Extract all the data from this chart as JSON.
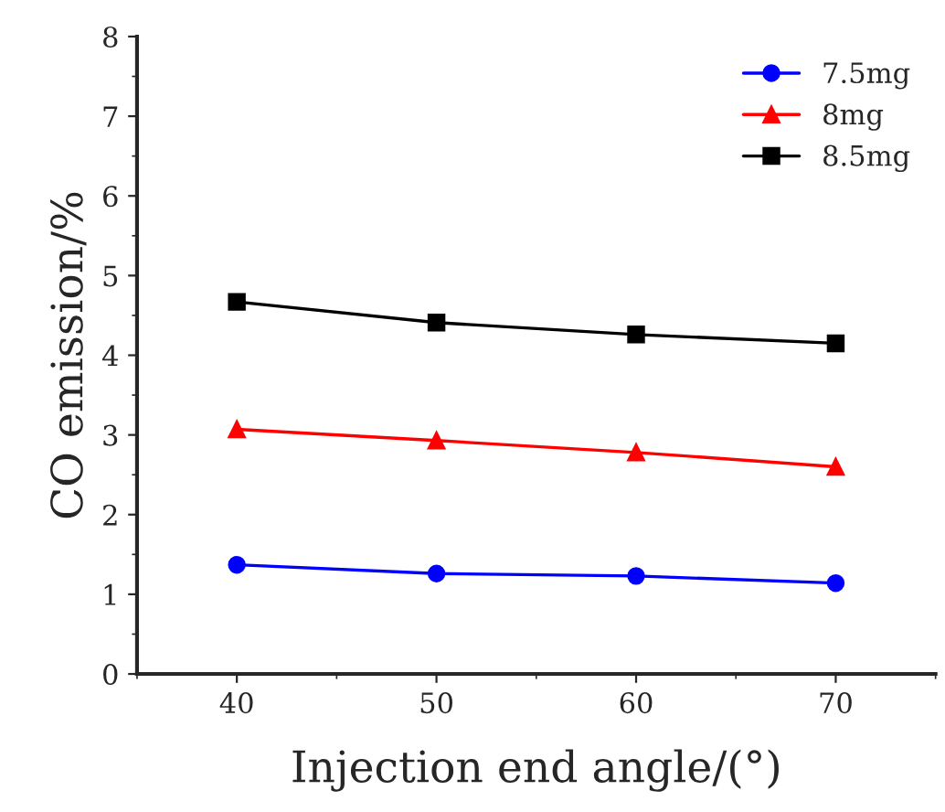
{
  "chart_data": {
    "type": "line",
    "xlabel": "Injection end angle/(°)",
    "ylabel": "CO emission/%",
    "x": [
      40,
      50,
      60,
      70
    ],
    "series": [
      {
        "name": "7.5mg",
        "color": "#0000ff",
        "marker": "circle",
        "values": [
          1.37,
          1.26,
          1.23,
          1.14
        ]
      },
      {
        "name": "8mg",
        "color": "#ff0000",
        "marker": "triangle",
        "values": [
          3.07,
          2.93,
          2.78,
          2.6
        ]
      },
      {
        "name": "8.5mg",
        "color": "#000000",
        "marker": "square",
        "values": [
          4.67,
          4.41,
          4.26,
          4.15
        ]
      }
    ],
    "xlim": [
      35,
      75
    ],
    "xticks": [
      40,
      50,
      60,
      70
    ],
    "ylim": [
      0,
      8
    ],
    "yticks": [
      0,
      1,
      2,
      3,
      4,
      5,
      6,
      7,
      8
    ],
    "grid": false,
    "legend": "top right"
  }
}
